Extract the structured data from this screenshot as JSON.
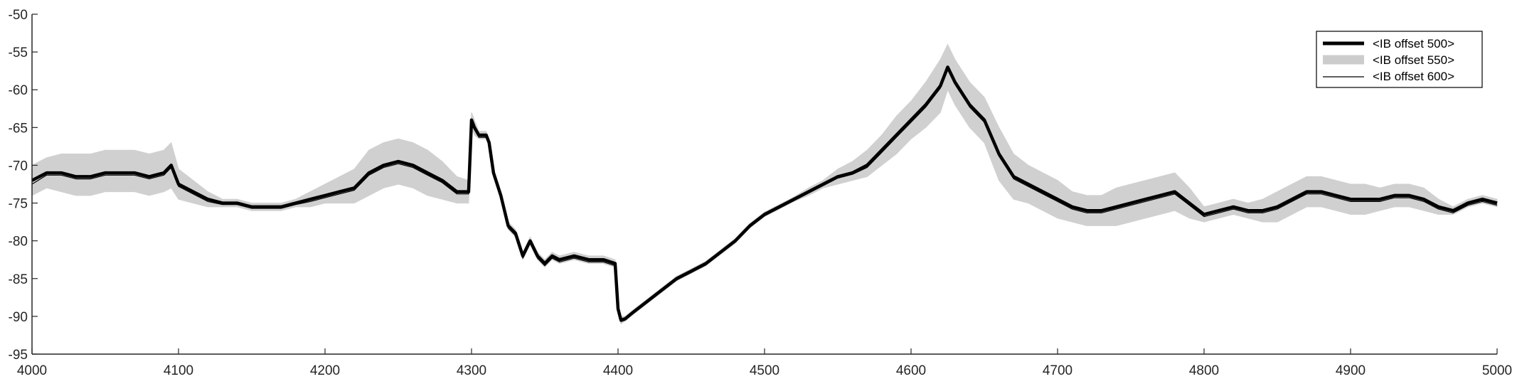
{
  "chart_data": {
    "type": "line",
    "title": "",
    "xlabel": "",
    "ylabel": "",
    "xlim": [
      4000,
      5000
    ],
    "ylim": [
      -95,
      -50
    ],
    "xticks": [
      4000,
      4100,
      4200,
      4300,
      4400,
      4500,
      4600,
      4700,
      4800,
      4900,
      5000
    ],
    "yticks": [
      -50,
      -55,
      -60,
      -65,
      -70,
      -75,
      -80,
      -85,
      -90,
      -95
    ],
    "grid": false,
    "legend_position": "top-right",
    "series": [
      {
        "name": "<IB offset 500>",
        "style": "thick-black",
        "color": "#000000",
        "x": [
          4000,
          4010,
          4020,
          4030,
          4040,
          4050,
          4060,
          4070,
          4080,
          4090,
          4095,
          4100,
          4110,
          4120,
          4130,
          4140,
          4150,
          4160,
          4170,
          4180,
          4190,
          4200,
          4210,
          4220,
          4230,
          4240,
          4250,
          4260,
          4270,
          4280,
          4290,
          4298,
          4300,
          4302,
          4305,
          4310,
          4312,
          4315,
          4320,
          4325,
          4330,
          4335,
          4340,
          4345,
          4350,
          4355,
          4360,
          4370,
          4380,
          4390,
          4398,
          4400,
          4402,
          4405,
          4410,
          4420,
          4430,
          4440,
          4450,
          4460,
          4470,
          4480,
          4490,
          4500,
          4510,
          4520,
          4530,
          4540,
          4550,
          4560,
          4570,
          4580,
          4590,
          4600,
          4610,
          4620,
          4625,
          4630,
          4640,
          4650,
          4660,
          4670,
          4680,
          4690,
          4700,
          4710,
          4720,
          4730,
          4740,
          4750,
          4760,
          4770,
          4780,
          4790,
          4800,
          4810,
          4820,
          4830,
          4840,
          4850,
          4860,
          4870,
          4880,
          4890,
          4900,
          4910,
          4920,
          4930,
          4940,
          4950,
          4960,
          4970,
          4980,
          4990,
          5000
        ],
        "y": [
          -72,
          -71,
          -71,
          -71.5,
          -71.5,
          -71,
          -71,
          -71,
          -71.5,
          -71,
          -70,
          -72.5,
          -73.5,
          -74.5,
          -75,
          -75,
          -75.5,
          -75.5,
          -75.5,
          -75,
          -74.5,
          -74,
          -73.5,
          -73,
          -71,
          -70,
          -69.5,
          -70,
          -71,
          -72,
          -73.5,
          -73.5,
          -64,
          -65,
          -66,
          -66,
          -67,
          -71,
          -74,
          -78,
          -79,
          -82,
          -80,
          -82,
          -83,
          -82,
          -82.5,
          -82,
          -82.5,
          -82.5,
          -83,
          -89,
          -90.5,
          -90.3,
          -89.5,
          -88,
          -86.5,
          -85,
          -84,
          -83,
          -81.5,
          -80,
          -78,
          -76.5,
          -75.5,
          -74.5,
          -73.5,
          -72.5,
          -71.5,
          -71,
          -70,
          -68,
          -66,
          -64,
          -62,
          -59.5,
          -57,
          -59,
          -62,
          -64,
          -68.5,
          -71.5,
          -72.5,
          -73.5,
          -74.5,
          -75.5,
          -76,
          -76,
          -75.5,
          -75,
          -74.5,
          -74,
          -73.5,
          -75,
          -76.5,
          -76,
          -75.5,
          -76,
          -76,
          -75.5,
          -74.5,
          -73.5,
          -73.5,
          -74,
          -74.5,
          -74.5,
          -74.5,
          -74,
          -74,
          -74.5,
          -75.5,
          -76,
          -75,
          -74.5,
          -75
        ]
      },
      {
        "name": "<IB offset 550>",
        "style": "gray-band",
        "color": "#d0d0d0",
        "x": [
          4000,
          4010,
          4020,
          4030,
          4040,
          4050,
          4060,
          4070,
          4080,
          4090,
          4095,
          4100,
          4110,
          4120,
          4130,
          4140,
          4150,
          4160,
          4170,
          4180,
          4190,
          4200,
          4210,
          4220,
          4230,
          4240,
          4250,
          4260,
          4270,
          4280,
          4290,
          4298,
          4300,
          4302,
          4305,
          4310,
          4312,
          4315,
          4320,
          4325,
          4330,
          4335,
          4340,
          4345,
          4350,
          4355,
          4360,
          4370,
          4380,
          4390,
          4398,
          4400,
          4402,
          4405,
          4410,
          4420,
          4430,
          4440,
          4450,
          4460,
          4470,
          4480,
          4490,
          4500,
          4510,
          4520,
          4530,
          4540,
          4550,
          4560,
          4570,
          4580,
          4590,
          4600,
          4610,
          4620,
          4625,
          4630,
          4640,
          4650,
          4660,
          4670,
          4680,
          4690,
          4700,
          4710,
          4720,
          4730,
          4740,
          4750,
          4760,
          4770,
          4780,
          4790,
          4800,
          4810,
          4820,
          4830,
          4840,
          4850,
          4860,
          4870,
          4880,
          4890,
          4900,
          4910,
          4920,
          4930,
          4940,
          4950,
          4960,
          4970,
          4980,
          4990,
          5000
        ],
        "y_upper": [
          -70,
          -69,
          -68.5,
          -68.5,
          -68.5,
          -68,
          -68,
          -68,
          -68.5,
          -68,
          -67,
          -70.5,
          -72,
          -73.5,
          -74.5,
          -74.5,
          -75,
          -75,
          -75,
          -74.5,
          -73.5,
          -72.5,
          -71.5,
          -70.5,
          -68,
          -67,
          -66.5,
          -67,
          -68,
          -69.5,
          -71.5,
          -72,
          -63,
          -64,
          -65.5,
          -65.5,
          -66.5,
          -70.5,
          -73.5,
          -77.5,
          -78.5,
          -81.5,
          -79.5,
          -81.5,
          -82.5,
          -81.5,
          -82,
          -81.5,
          -82,
          -82,
          -82.5,
          -88.5,
          -90,
          -90,
          -89.2,
          -87.7,
          -86.2,
          -84.7,
          -83.7,
          -82.7,
          -81.2,
          -79.7,
          -77.7,
          -76.2,
          -75.2,
          -74.2,
          -73,
          -72,
          -70.5,
          -69.5,
          -68,
          -66,
          -63.5,
          -61.5,
          -59,
          -56,
          -54,
          -56,
          -59,
          -61,
          -65,
          -68.5,
          -70,
          -71,
          -72,
          -73.5,
          -74,
          -74,
          -73,
          -72.5,
          -72,
          -71.5,
          -71,
          -73,
          -75.5,
          -75,
          -74.5,
          -75,
          -74.5,
          -73.5,
          -72.5,
          -71.5,
          -71.5,
          -72,
          -72.5,
          -72.5,
          -73,
          -72.5,
          -72.5,
          -73,
          -74.5,
          -75.5,
          -74.5,
          -74,
          -74.5
        ],
        "y_lower": [
          -74,
          -73,
          -73.5,
          -74,
          -74,
          -73.5,
          -73.5,
          -73.5,
          -74,
          -73.5,
          -73,
          -74.5,
          -75,
          -75.5,
          -75.5,
          -75.5,
          -76,
          -76,
          -76,
          -75.5,
          -75.5,
          -75,
          -75,
          -75,
          -74,
          -73,
          -72.5,
          -73,
          -74,
          -74.5,
          -75,
          -75,
          -65,
          -66,
          -66.5,
          -66.5,
          -67.5,
          -71.5,
          -74.5,
          -78.5,
          -79.5,
          -82.5,
          -80.5,
          -82.5,
          -83.5,
          -82.5,
          -83,
          -82.5,
          -83,
          -83,
          -83.5,
          -89.5,
          -91,
          -90.6,
          -89.8,
          -88.3,
          -86.8,
          -85.3,
          -84.3,
          -83.3,
          -81.8,
          -80.3,
          -78.3,
          -76.8,
          -75.8,
          -74.8,
          -74,
          -73,
          -72.5,
          -72,
          -71.5,
          -70,
          -68.5,
          -66.5,
          -65,
          -63,
          -60,
          -62,
          -65,
          -67,
          -72,
          -74.5,
          -75,
          -76,
          -77,
          -77.5,
          -78,
          -78,
          -78,
          -77.5,
          -77,
          -76.5,
          -76,
          -77,
          -77.5,
          -77,
          -76.5,
          -77,
          -77.5,
          -77.5,
          -76.5,
          -75.5,
          -75.5,
          -76,
          -76.5,
          -76.5,
          -76,
          -75.5,
          -75.5,
          -76,
          -76.5,
          -76.5,
          -75.5,
          -75,
          -75.5
        ]
      },
      {
        "name": "<IB offset 600>",
        "style": "thin-black",
        "color": "#000000",
        "x": [
          4000,
          4010,
          4020,
          4030,
          4040,
          4050,
          4060,
          4070,
          4080,
          4090,
          4095,
          4100,
          4110,
          4120,
          4130,
          4140,
          4150,
          4160,
          4170,
          4180,
          4190,
          4200,
          4210,
          4220,
          4230,
          4240,
          4250,
          4260,
          4270,
          4280,
          4290,
          4298,
          4300,
          4302,
          4305,
          4310,
          4312,
          4315,
          4320,
          4325,
          4330,
          4335,
          4340,
          4345,
          4350,
          4355,
          4360,
          4370,
          4380,
          4390,
          4398,
          4400,
          4402,
          4405,
          4410,
          4420,
          4430,
          4440,
          4450,
          4460,
          4470,
          4480,
          4490,
          4500,
          4510,
          4520,
          4530,
          4540,
          4550,
          4560,
          4570,
          4580,
          4590,
          4600,
          4610,
          4620,
          4625,
          4630,
          4640,
          4650,
          4660,
          4670,
          4680,
          4690,
          4700,
          4710,
          4720,
          4730,
          4740,
          4750,
          4760,
          4770,
          4780,
          4790,
          4800,
          4810,
          4820,
          4830,
          4840,
          4850,
          4860,
          4870,
          4880,
          4890,
          4900,
          4910,
          4920,
          4930,
          4940,
          4950,
          4960,
          4970,
          4980,
          4990,
          5000
        ],
        "y": [
          -72.5,
          -71.3,
          -71.3,
          -71.8,
          -71.8,
          -71.3,
          -71.3,
          -71.3,
          -71.8,
          -71.3,
          -70.3,
          -72.8,
          -73.8,
          -74.8,
          -75.2,
          -75.2,
          -75.7,
          -75.7,
          -75.7,
          -75.2,
          -74.8,
          -74.3,
          -73.8,
          -73.3,
          -71.3,
          -70.3,
          -69.8,
          -70.3,
          -71.3,
          -72.3,
          -73.8,
          -73.8,
          -64.3,
          -65.3,
          -66.3,
          -66.3,
          -67.3,
          -71.3,
          -74.3,
          -78.3,
          -79.3,
          -82.3,
          -80.3,
          -82.3,
          -83.3,
          -82.3,
          -82.8,
          -82.3,
          -82.8,
          -82.8,
          -83.3,
          -89.3,
          -90.7,
          -90.5,
          -89.7,
          -88.2,
          -86.7,
          -85.2,
          -84.2,
          -83.2,
          -81.7,
          -80.2,
          -78.2,
          -76.7,
          -75.7,
          -74.7,
          -73.7,
          -72.7,
          -71.7,
          -71.2,
          -70.3,
          -68.3,
          -66.3,
          -64.3,
          -62.3,
          -59.8,
          -57.3,
          -59.3,
          -62.3,
          -64.3,
          -68.8,
          -71.8,
          -72.8,
          -73.8,
          -74.8,
          -75.8,
          -76.3,
          -76.3,
          -75.8,
          -75.3,
          -74.8,
          -74.3,
          -73.8,
          -75.3,
          -76.8,
          -76.3,
          -75.8,
          -76.3,
          -76.3,
          -75.8,
          -74.8,
          -73.8,
          -73.8,
          -74.3,
          -74.8,
          -74.8,
          -74.8,
          -74.3,
          -74.3,
          -74.8,
          -75.8,
          -76.3,
          -75.3,
          -74.8,
          -75.3
        ]
      }
    ]
  }
}
